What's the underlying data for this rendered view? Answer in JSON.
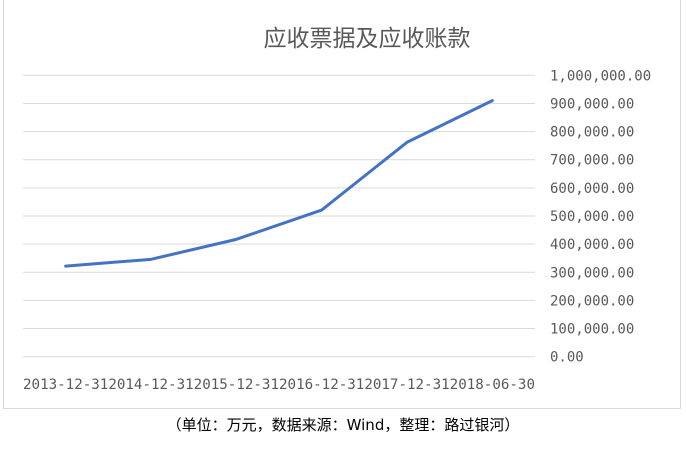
{
  "chart_data": {
    "type": "line",
    "title": "应收票据及应收账款",
    "categories": [
      "2013-12-31",
      "2014-12-31",
      "2015-12-31",
      "2016-12-31",
      "2017-12-31",
      "2018-06-30"
    ],
    "series": [
      {
        "values": [
          322000,
          346000,
          417000,
          521000,
          762000,
          910000
        ],
        "color": "#4472c4"
      }
    ],
    "ylim": [
      0,
      1000000
    ],
    "yticks": [
      0,
      100000,
      200000,
      300000,
      400000,
      500000,
      600000,
      700000,
      800000,
      900000,
      1000000
    ],
    "ytick_labels": [
      "0.00",
      "100,000.00",
      "200,000.00",
      "300,000.00",
      "400,000.00",
      "500,000.00",
      "600,000.00",
      "700,000.00",
      "800,000.00",
      "900,000.00",
      "1,000,000.00"
    ],
    "y_axis_side": "right",
    "grid": true,
    "xlabel": "",
    "ylabel": ""
  },
  "caption": "（单位：万元，数据来源：Wind，整理：路过银河）"
}
